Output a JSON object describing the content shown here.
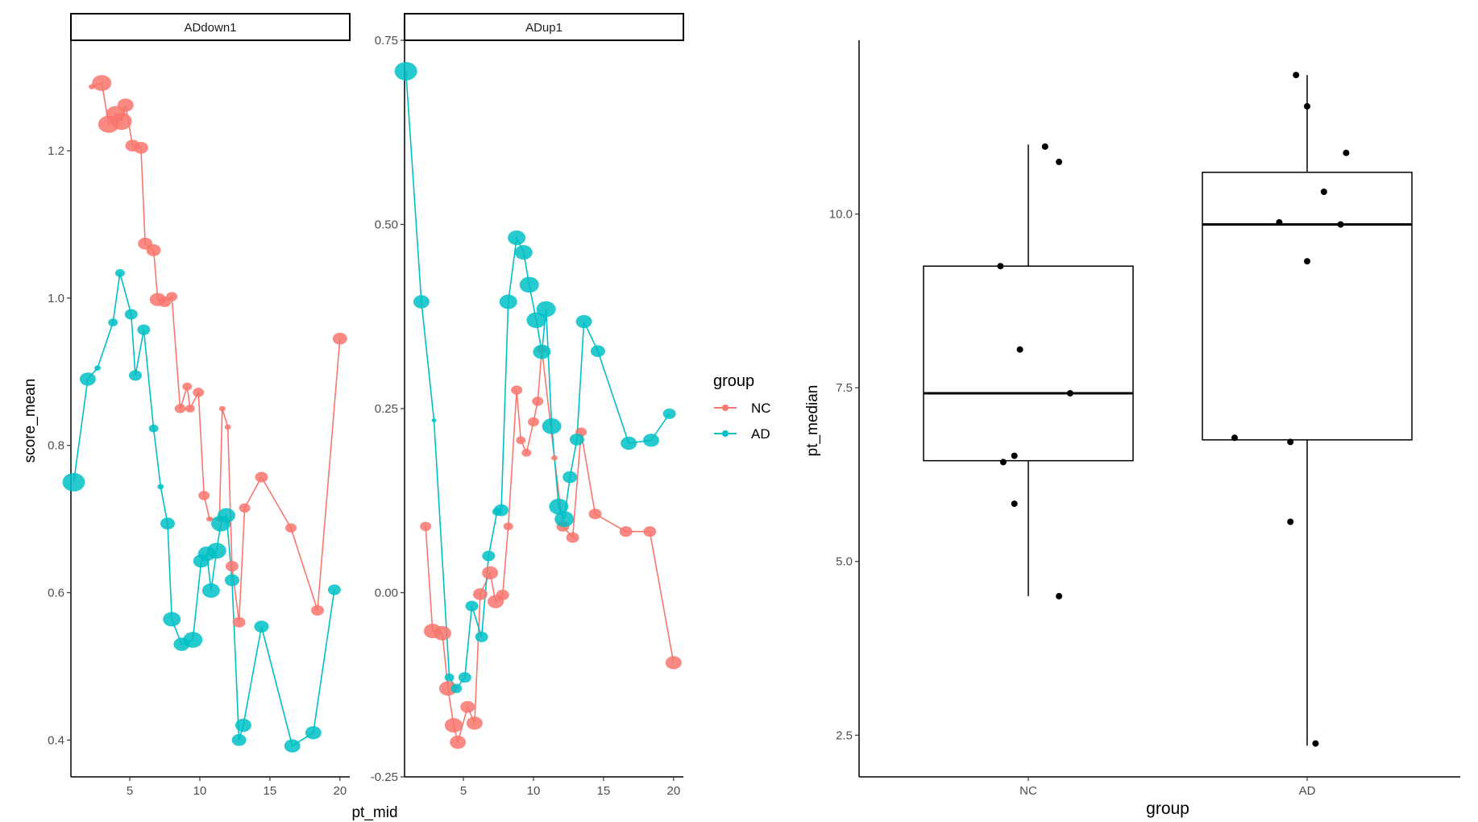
{
  "colors": {
    "NC": "#F8766D",
    "AD": "#00BFC4",
    "axis": "#000000",
    "tick_text": "#4D4D4D",
    "strip_fill": "#FFFFFF"
  },
  "legend": {
    "title": "group",
    "items": [
      {
        "label": "NC",
        "color": "#F8766D"
      },
      {
        "label": "AD",
        "color": "#00BFC4"
      }
    ],
    "position": "right"
  },
  "chart_data": [
    {
      "type": "line",
      "facet_strips": [
        "ADdown1",
        "ADup1"
      ],
      "xlabel": "pt_mid",
      "ylabel": "score_mean",
      "xlim": [
        0.8,
        20.7
      ],
      "x_ticks": [
        5,
        10,
        15,
        20
      ],
      "x_tick_labels": [
        "5",
        "10",
        "15",
        "20"
      ],
      "grid": false,
      "marker_size": "varies by point",
      "panels": [
        {
          "strip": "ADdown1",
          "ylim": [
            0.35,
            1.35
          ],
          "y_ticks": [
            0.4,
            0.6,
            0.8,
            1.0,
            1.2
          ],
          "y_tick_labels": [
            "0.4",
            "0.6",
            "0.8",
            "1.0",
            "1.2"
          ],
          "series": [
            {
              "name": "NC",
              "points": [
                [
                  2.3,
                  1.287,
                  4
                ],
                [
                  3.0,
                  1.292,
                  12
                ],
                [
                  3.5,
                  1.236,
                  13
                ],
                [
                  4.0,
                  1.25,
                  12
                ],
                [
                  4.4,
                  1.24,
                  13
                ],
                [
                  4.7,
                  1.262,
                  10
                ],
                [
                  5.2,
                  1.207,
                  9
                ],
                [
                  5.8,
                  1.204,
                  9
                ],
                [
                  6.1,
                  1.074,
                  9
                ],
                [
                  6.7,
                  1.065,
                  9
                ],
                [
                  7.0,
                  0.998,
                  10
                ],
                [
                  7.5,
                  0.995,
                  8
                ],
                [
                  8.0,
                  1.002,
                  7
                ],
                [
                  8.6,
                  0.85,
                  7
                ],
                [
                  9.1,
                  0.88,
                  6
                ],
                [
                  9.3,
                  0.85,
                  6
                ],
                [
                  9.9,
                  0.872,
                  7
                ],
                [
                  10.3,
                  0.732,
                  7
                ],
                [
                  10.7,
                  0.7,
                  4
                ],
                [
                  11.4,
                  0.7,
                  4
                ],
                [
                  11.6,
                  0.85,
                  4
                ],
                [
                  12.0,
                  0.825,
                  4
                ],
                [
                  12.3,
                  0.636,
                  8
                ],
                [
                  12.8,
                  0.56,
                  8
                ],
                [
                  13.2,
                  0.715,
                  7
                ],
                [
                  14.4,
                  0.757,
                  8
                ],
                [
                  16.5,
                  0.688,
                  7
                ],
                [
                  18.4,
                  0.576,
                  8
                ],
                [
                  20.0,
                  0.945,
                  9
                ]
              ]
            },
            {
              "name": "AD",
              "points": [
                [
                  1.0,
                  0.75,
                  14
                ],
                [
                  2.0,
                  0.89,
                  10
                ],
                [
                  2.7,
                  0.905,
                  4
                ],
                [
                  3.8,
                  0.967,
                  6
                ],
                [
                  4.3,
                  1.034,
                  6
                ],
                [
                  5.1,
                  0.978,
                  8
                ],
                [
                  5.4,
                  0.895,
                  8
                ],
                [
                  6.0,
                  0.957,
                  8
                ],
                [
                  6.7,
                  0.823,
                  6
                ],
                [
                  7.2,
                  0.744,
                  4
                ],
                [
                  7.7,
                  0.694,
                  9
                ],
                [
                  8.0,
                  0.564,
                  11
                ],
                [
                  8.7,
                  0.53,
                  10
                ],
                [
                  9.5,
                  0.536,
                  12
                ],
                [
                  10.1,
                  0.643,
                  10
                ],
                [
                  10.5,
                  0.653,
                  11
                ],
                [
                  10.8,
                  0.603,
                  11
                ],
                [
                  11.2,
                  0.657,
                  12
                ],
                [
                  11.5,
                  0.694,
                  12
                ],
                [
                  11.9,
                  0.705,
                  11
                ],
                [
                  12.3,
                  0.617,
                  9
                ],
                [
                  12.8,
                  0.4,
                  9
                ],
                [
                  13.1,
                  0.42,
                  10
                ],
                [
                  14.4,
                  0.554,
                  9
                ],
                [
                  16.6,
                  0.392,
                  10
                ],
                [
                  18.1,
                  0.41,
                  10
                ],
                [
                  19.6,
                  0.604,
                  8
                ]
              ]
            }
          ]
        },
        {
          "strip": "ADup1",
          "ylim": [
            -0.25,
            0.75
          ],
          "y_ticks": [
            -0.25,
            0.0,
            0.25,
            0.5,
            0.75
          ],
          "y_tick_labels": [
            "-0.25",
            "0.00",
            "0.25",
            "0.50",
            "0.75"
          ],
          "series": [
            {
              "name": "NC",
              "points": [
                [
                  2.3,
                  0.09,
                  7
                ],
                [
                  2.8,
                  -0.052,
                  11
                ],
                [
                  3.5,
                  -0.055,
                  11
                ],
                [
                  3.9,
                  -0.13,
                  11
                ],
                [
                  4.3,
                  -0.18,
                  11
                ],
                [
                  4.6,
                  -0.203,
                  10
                ],
                [
                  5.3,
                  -0.155,
                  9
                ],
                [
                  5.8,
                  -0.177,
                  10
                ],
                [
                  6.2,
                  -0.002,
                  9
                ],
                [
                  6.9,
                  0.027,
                  10
                ],
                [
                  7.3,
                  -0.012,
                  10
                ],
                [
                  7.8,
                  -0.003,
                  8
                ],
                [
                  8.2,
                  0.09,
                  6
                ],
                [
                  8.8,
                  0.275,
                  7
                ],
                [
                  9.1,
                  0.207,
                  6
                ],
                [
                  9.5,
                  0.19,
                  6
                ],
                [
                  10.0,
                  0.232,
                  7
                ],
                [
                  10.3,
                  0.26,
                  7
                ],
                [
                  10.6,
                  0.33,
                  6
                ],
                [
                  11.5,
                  0.183,
                  4
                ],
                [
                  12.1,
                  0.09,
                  8
                ],
                [
                  12.8,
                  0.075,
                  8
                ],
                [
                  13.4,
                  0.218,
                  7
                ],
                [
                  14.4,
                  0.107,
                  8
                ],
                [
                  16.6,
                  0.083,
                  8
                ],
                [
                  18.3,
                  0.083,
                  8
                ],
                [
                  20.0,
                  -0.095,
                  10
                ]
              ]
            },
            {
              "name": "AD",
              "points": [
                [
                  0.9,
                  0.708,
                  14
                ],
                [
                  2.0,
                  0.395,
                  10
                ],
                [
                  2.9,
                  0.234,
                  3
                ],
                [
                  4.0,
                  -0.115,
                  6
                ],
                [
                  4.5,
                  -0.13,
                  7
                ],
                [
                  5.1,
                  -0.115,
                  8
                ],
                [
                  5.6,
                  -0.018,
                  8
                ],
                [
                  6.3,
                  -0.06,
                  8
                ],
                [
                  6.8,
                  0.05,
                  8
                ],
                [
                  7.4,
                  0.11,
                  6
                ],
                [
                  7.7,
                  0.112,
                  9
                ],
                [
                  8.2,
                  0.395,
                  11
                ],
                [
                  8.8,
                  0.482,
                  11
                ],
                [
                  9.3,
                  0.462,
                  11
                ],
                [
                  9.7,
                  0.418,
                  12
                ],
                [
                  10.2,
                  0.37,
                  12
                ],
                [
                  10.6,
                  0.327,
                  11
                ],
                [
                  10.9,
                  0.385,
                  12
                ],
                [
                  11.3,
                  0.226,
                  12
                ],
                [
                  11.8,
                  0.117,
                  12
                ],
                [
                  12.2,
                  0.1,
                  12
                ],
                [
                  12.6,
                  0.157,
                  9
                ],
                [
                  13.1,
                  0.208,
                  9
                ],
                [
                  13.6,
                  0.368,
                  10
                ],
                [
                  14.6,
                  0.328,
                  9
                ],
                [
                  16.8,
                  0.203,
                  10
                ],
                [
                  18.4,
                  0.207,
                  10
                ],
                [
                  19.7,
                  0.243,
                  8
                ]
              ]
            }
          ]
        }
      ]
    },
    {
      "type": "box",
      "xlabel": "group",
      "ylabel": "pt_median",
      "categories": [
        "NC",
        "AD"
      ],
      "ylim": [
        1.9,
        12.5
      ],
      "y_ticks": [
        2.5,
        5.0,
        7.5,
        10.0
      ],
      "y_tick_labels": [
        "2.5",
        "5.0",
        "7.5",
        "10.0"
      ],
      "grid": false,
      "boxes": [
        {
          "name": "NC",
          "whisker_low": 4.5,
          "q1": 6.45,
          "median": 7.42,
          "q3": 9.25,
          "whisker_high": 11.0
        },
        {
          "name": "AD",
          "whisker_low": 2.35,
          "q1": 6.75,
          "median": 9.85,
          "q3": 10.6,
          "whisker_high": 12.0
        }
      ],
      "points": [
        {
          "group": "NC",
          "jitter": 0.06,
          "y": 10.97
        },
        {
          "group": "NC",
          "jitter": 0.11,
          "y": 10.75
        },
        {
          "group": "NC",
          "jitter": -0.1,
          "y": 9.25
        },
        {
          "group": "NC",
          "jitter": -0.03,
          "y": 8.05
        },
        {
          "group": "NC",
          "jitter": 0.15,
          "y": 7.42
        },
        {
          "group": "NC",
          "jitter": -0.05,
          "y": 6.52
        },
        {
          "group": "NC",
          "jitter": -0.09,
          "y": 6.43
        },
        {
          "group": "NC",
          "jitter": -0.05,
          "y": 5.83
        },
        {
          "group": "NC",
          "jitter": 0.11,
          "y": 4.5
        },
        {
          "group": "AD",
          "jitter": -0.04,
          "y": 12.0
        },
        {
          "group": "AD",
          "jitter": 0.0,
          "y": 11.55
        },
        {
          "group": "AD",
          "jitter": 0.14,
          "y": 10.88
        },
        {
          "group": "AD",
          "jitter": 0.06,
          "y": 10.32
        },
        {
          "group": "AD",
          "jitter": -0.1,
          "y": 9.88
        },
        {
          "group": "AD",
          "jitter": 0.12,
          "y": 9.85
        },
        {
          "group": "AD",
          "jitter": 0.0,
          "y": 9.32
        },
        {
          "group": "AD",
          "jitter": -0.26,
          "y": 6.78
        },
        {
          "group": "AD",
          "jitter": -0.06,
          "y": 6.72
        },
        {
          "group": "AD",
          "jitter": -0.06,
          "y": 5.57
        },
        {
          "group": "AD",
          "jitter": 0.03,
          "y": 2.38
        }
      ]
    }
  ]
}
